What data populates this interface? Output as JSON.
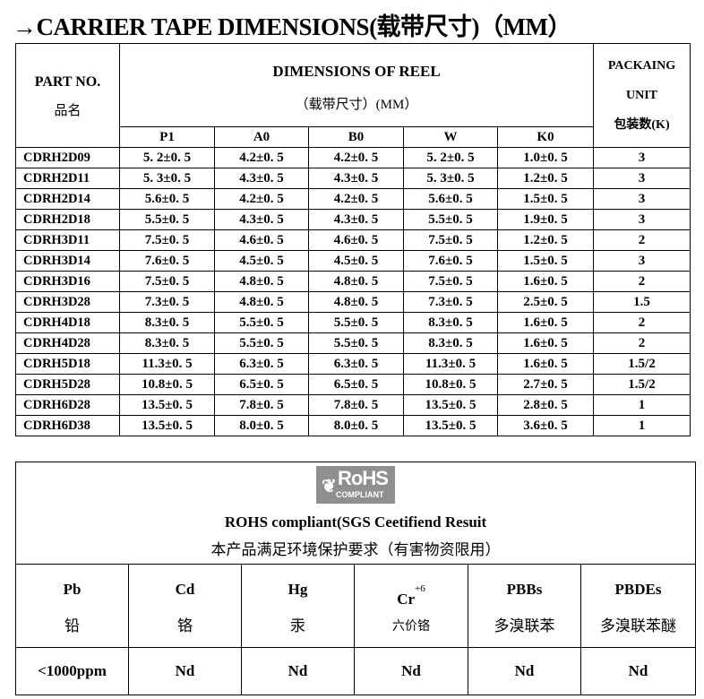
{
  "title": "→CARRIER TAPE DIMENSIONS(载带尺寸)（MM）",
  "reel_table": {
    "part_no_label": "PART NO.",
    "part_no_cn": "品名",
    "dimensions_label": "DIMENSIONS OF REEL",
    "dimensions_cn": "（载带尺寸）(MM）",
    "packaging_label_1": "PACKAING",
    "packaging_label_2": "UNIT",
    "packaging_cn": "包装数(K)",
    "columns": [
      "P1",
      "A0",
      "B0",
      "W",
      "K0"
    ],
    "rows": [
      {
        "part": "CDRH2D09",
        "vals": [
          "5. 2±0. 5",
          "4.2±0. 5",
          "4.2±0. 5",
          "5. 2±0. 5",
          "1.0±0. 5"
        ],
        "pack": "3"
      },
      {
        "part": "CDRH2D11",
        "vals": [
          "5. 3±0. 5",
          "4.3±0. 5",
          "4.3±0. 5",
          "5. 3±0. 5",
          "1.2±0. 5"
        ],
        "pack": "3"
      },
      {
        "part": "CDRH2D14",
        "vals": [
          "5.6±0. 5",
          "4.2±0. 5",
          "4.2±0. 5",
          "5.6±0. 5",
          "1.5±0. 5"
        ],
        "pack": "3"
      },
      {
        "part": "CDRH2D18",
        "vals": [
          "5.5±0. 5",
          "4.3±0. 5",
          "4.3±0. 5",
          "5.5±0. 5",
          "1.9±0. 5"
        ],
        "pack": "3"
      },
      {
        "part": "CDRH3D11",
        "vals": [
          "7.5±0. 5",
          "4.6±0. 5",
          "4.6±0. 5",
          "7.5±0. 5",
          "1.2±0. 5"
        ],
        "pack": "2"
      },
      {
        "part": "CDRH3D14",
        "vals": [
          "7.6±0. 5",
          "4.5±0. 5",
          "4.5±0. 5",
          "7.6±0. 5",
          "1.5±0. 5"
        ],
        "pack": "3"
      },
      {
        "part": "CDRH3D16",
        "vals": [
          "7.5±0. 5",
          "4.8±0. 5",
          "4.8±0. 5",
          "7.5±0. 5",
          "1.6±0. 5"
        ],
        "pack": "2"
      },
      {
        "part": "CDRH3D28",
        "vals": [
          "7.3±0. 5",
          "4.8±0. 5",
          "4.8±0. 5",
          "7.3±0. 5",
          "2.5±0. 5"
        ],
        "pack": "1.5"
      },
      {
        "part": "CDRH4D18",
        "vals": [
          "8.3±0. 5",
          "5.5±0. 5",
          "5.5±0. 5",
          "8.3±0. 5",
          "1.6±0. 5"
        ],
        "pack": "2"
      },
      {
        "part": "CDRH4D28",
        "vals": [
          "8.3±0. 5",
          "5.5±0. 5",
          "5.5±0. 5",
          "8.3±0. 5",
          "1.6±0. 5"
        ],
        "pack": "2"
      },
      {
        "part": "CDRH5D18",
        "vals": [
          "11.3±0. 5",
          "6.3±0. 5",
          "6.3±0. 5",
          "11.3±0. 5",
          "1.6±0. 5"
        ],
        "pack": "1.5/2"
      },
      {
        "part": "CDRH5D28",
        "vals": [
          "10.8±0. 5",
          "6.5±0. 5",
          "6.5±0. 5",
          "10.8±0. 5",
          "2.7±0. 5"
        ],
        "pack": "1.5/2"
      },
      {
        "part": "CDRH6D28",
        "vals": [
          "13.5±0. 5",
          "7.8±0. 5",
          "7.8±0. 5",
          "13.5±0. 5",
          "2.8±0. 5"
        ],
        "pack": "1"
      },
      {
        "part": "CDRH6D38",
        "vals": [
          "13.5±0. 5",
          "8.0±0. 5",
          "8.0±0. 5",
          "13.5±0. 5",
          "3.6±0. 5"
        ],
        "pack": "1"
      }
    ]
  },
  "rohs": {
    "logo_text": "RoHS",
    "logo_sub": "COMPLIANT",
    "heading": "ROHS compliant(SGS Ceetifiend Resuit",
    "heading_cn": "本产品满足环境保护要求（有害物资限用）",
    "substances": [
      {
        "symbol": "Pb",
        "sup": "",
        "cn": "铅",
        "value": "<1000ppm"
      },
      {
        "symbol": "Cd",
        "sup": "",
        "cn": "铬",
        "value": "Nd"
      },
      {
        "symbol": "Hg",
        "sup": "",
        "cn": "汞",
        "value": "Nd"
      },
      {
        "symbol": "Cr",
        "sup": "+6",
        "cn": "六价铬",
        "value": "Nd"
      },
      {
        "symbol": "PBBs",
        "sup": "",
        "cn": "多溴联苯",
        "value": "Nd"
      },
      {
        "symbol": "PBDEs",
        "sup": "",
        "cn": "多溴联苯醚",
        "value": "Nd"
      }
    ]
  }
}
